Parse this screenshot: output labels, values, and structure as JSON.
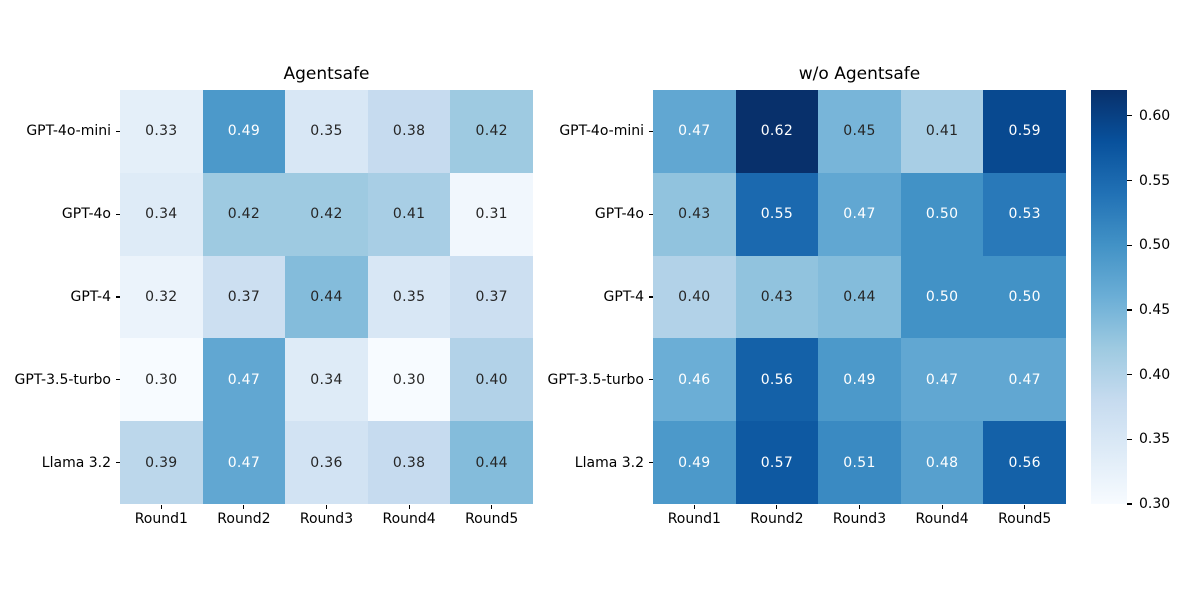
{
  "chart_data": [
    {
      "type": "heatmap",
      "title": "Agentsafe",
      "x_categories": [
        "Round1",
        "Round2",
        "Round3",
        "Round4",
        "Round5"
      ],
      "y_categories": [
        "GPT-4o-mini",
        "GPT-4o",
        "GPT-4",
        "GPT-3.5-turbo",
        "Llama 3.2"
      ],
      "values": [
        [
          0.33,
          0.49,
          0.35,
          0.38,
          0.42
        ],
        [
          0.34,
          0.42,
          0.42,
          0.41,
          0.31
        ],
        [
          0.32,
          0.37,
          0.44,
          0.35,
          0.37
        ],
        [
          0.3,
          0.47,
          0.34,
          0.3,
          0.4
        ],
        [
          0.39,
          0.47,
          0.36,
          0.38,
          0.44
        ]
      ]
    },
    {
      "type": "heatmap",
      "title": "w/o Agentsafe",
      "x_categories": [
        "Round1",
        "Round2",
        "Round3",
        "Round4",
        "Round5"
      ],
      "y_categories": [
        "GPT-4o-mini",
        "GPT-4o",
        "GPT-4",
        "GPT-3.5-turbo",
        "Llama 3.2"
      ],
      "values": [
        [
          0.47,
          0.62,
          0.45,
          0.41,
          0.59
        ],
        [
          0.43,
          0.55,
          0.47,
          0.5,
          0.53
        ],
        [
          0.4,
          0.43,
          0.44,
          0.5,
          0.5
        ],
        [
          0.46,
          0.56,
          0.49,
          0.47,
          0.47
        ],
        [
          0.49,
          0.57,
          0.51,
          0.48,
          0.56
        ]
      ]
    }
  ],
  "colorbar": {
    "tick_values": [
      0.6,
      0.55,
      0.5,
      0.45,
      0.4,
      0.35,
      0.3
    ],
    "vmin": 0.3,
    "vmax": 0.62,
    "colormap": "Blues",
    "colormap_anchors": [
      "#f7fbff",
      "#deebf7",
      "#c6dbef",
      "#9ecae1",
      "#6baed6",
      "#4292c6",
      "#2171b5",
      "#08519c",
      "#08306b"
    ]
  },
  "style": {
    "background": "#ffffff",
    "annotation_text_dark": "#262626",
    "annotation_text_light": "#ffffff",
    "axis_text_color": "#000000"
  }
}
